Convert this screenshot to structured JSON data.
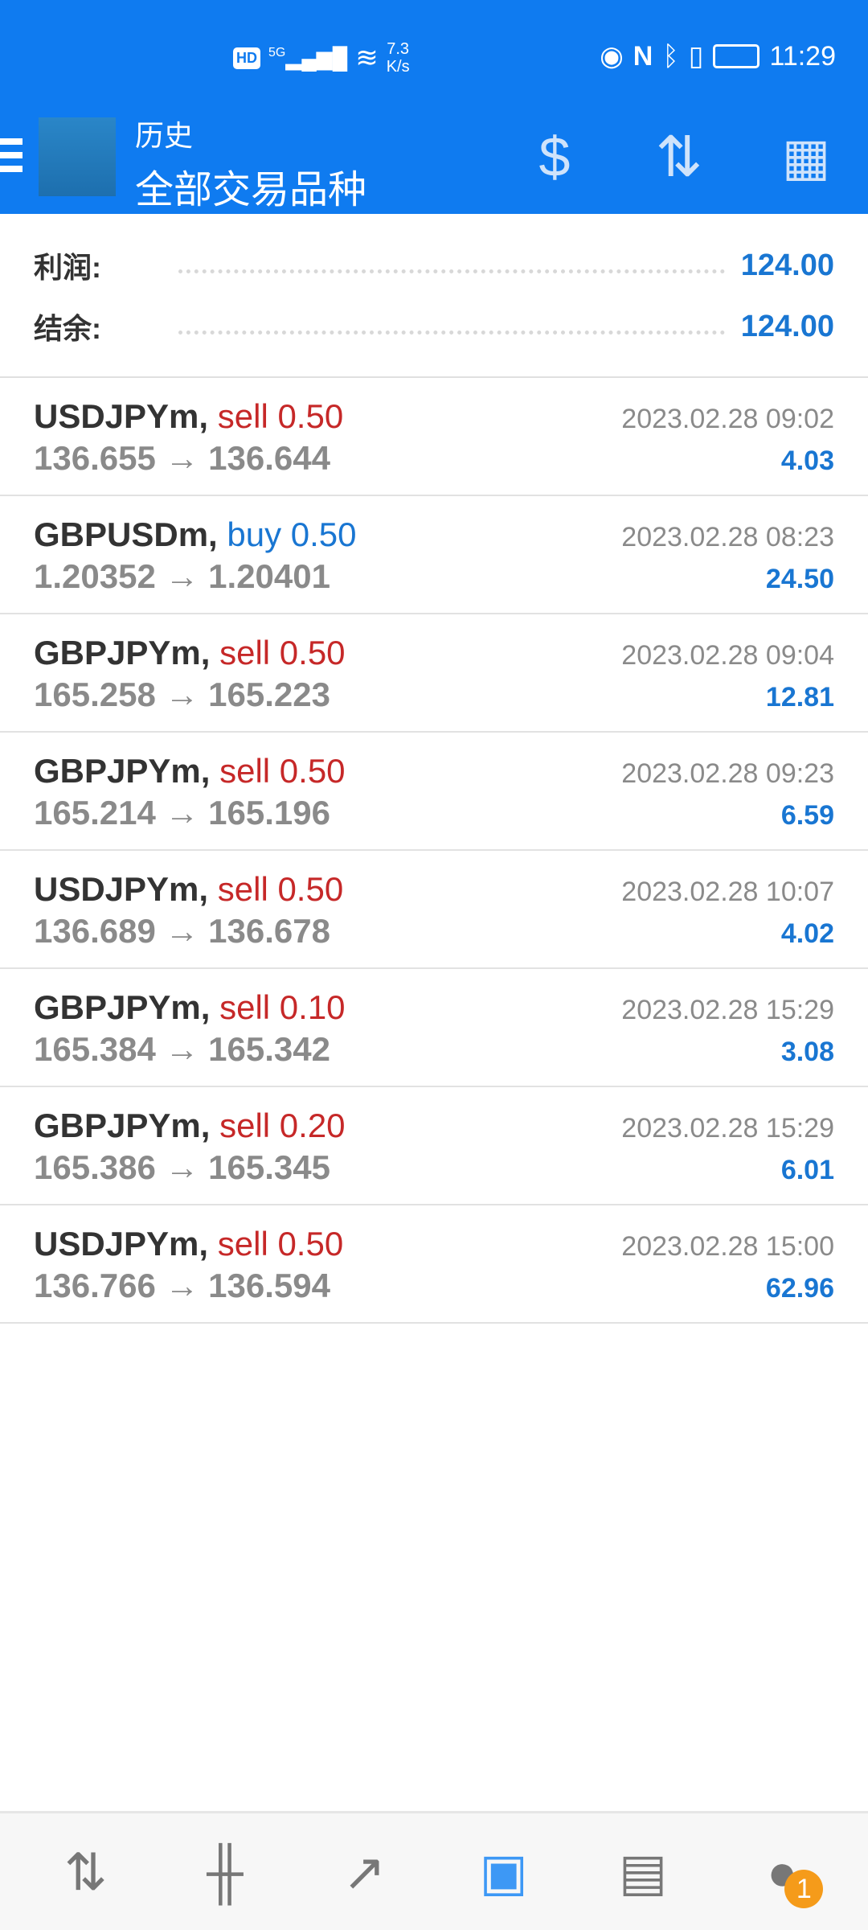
{
  "status_bar": {
    "hd": "HD",
    "network": "5G",
    "speed_value": "7.3",
    "speed_unit": "K/s",
    "time": "11:29"
  },
  "header": {
    "title": "历史",
    "subtitle": "全部交易品种",
    "icons": [
      "menu-icon",
      "mt4-logo",
      "currency-exchange-icon",
      "sort-icon",
      "calendar-icon"
    ]
  },
  "summary": {
    "profit_label": "利润:",
    "profit_value": "124.00",
    "balance_label": "结余:",
    "balance_value": "124.00"
  },
  "trades": [
    {
      "symbol": "USDJPYm,",
      "side": "sell",
      "volume": "0.50",
      "open": "136.655",
      "close": "136.644",
      "time": "2023.02.28 09:02",
      "profit": "4.03"
    },
    {
      "symbol": "GBPUSDm,",
      "side": "buy",
      "volume": "0.50",
      "open": "1.20352",
      "close": "1.20401",
      "time": "2023.02.28 08:23",
      "profit": "24.50"
    },
    {
      "symbol": "GBPJPYm,",
      "side": "sell",
      "volume": "0.50",
      "open": "165.258",
      "close": "165.223",
      "time": "2023.02.28 09:04",
      "profit": "12.81"
    },
    {
      "symbol": "GBPJPYm,",
      "side": "sell",
      "volume": "0.50",
      "open": "165.214",
      "close": "165.196",
      "time": "2023.02.28 09:23",
      "profit": "6.59"
    },
    {
      "symbol": "USDJPYm,",
      "side": "sell",
      "volume": "0.50",
      "open": "136.689",
      "close": "136.678",
      "time": "2023.02.28 10:07",
      "profit": "4.02"
    },
    {
      "symbol": "GBPJPYm,",
      "side": "sell",
      "volume": "0.10",
      "open": "165.384",
      "close": "165.342",
      "time": "2023.02.28 15:29",
      "profit": "3.08"
    },
    {
      "symbol": "GBPJPYm,",
      "side": "sell",
      "volume": "0.20",
      "open": "165.386",
      "close": "165.345",
      "time": "2023.02.28 15:29",
      "profit": "6.01"
    },
    {
      "symbol": "USDJPYm,",
      "side": "sell",
      "volume": "0.50",
      "open": "136.766",
      "close": "136.594",
      "time": "2023.02.28 15:00",
      "profit": "62.96"
    }
  ],
  "bottom_nav": {
    "items": [
      "quotes",
      "charts",
      "trade",
      "history",
      "news",
      "messages"
    ],
    "active": "history",
    "messages_badge": "1"
  },
  "colors": {
    "header": "#0f7bf0",
    "sell": "#c62828",
    "buy": "#1976d2",
    "profit": "#1976d2",
    "badge": "#f59b1a"
  }
}
